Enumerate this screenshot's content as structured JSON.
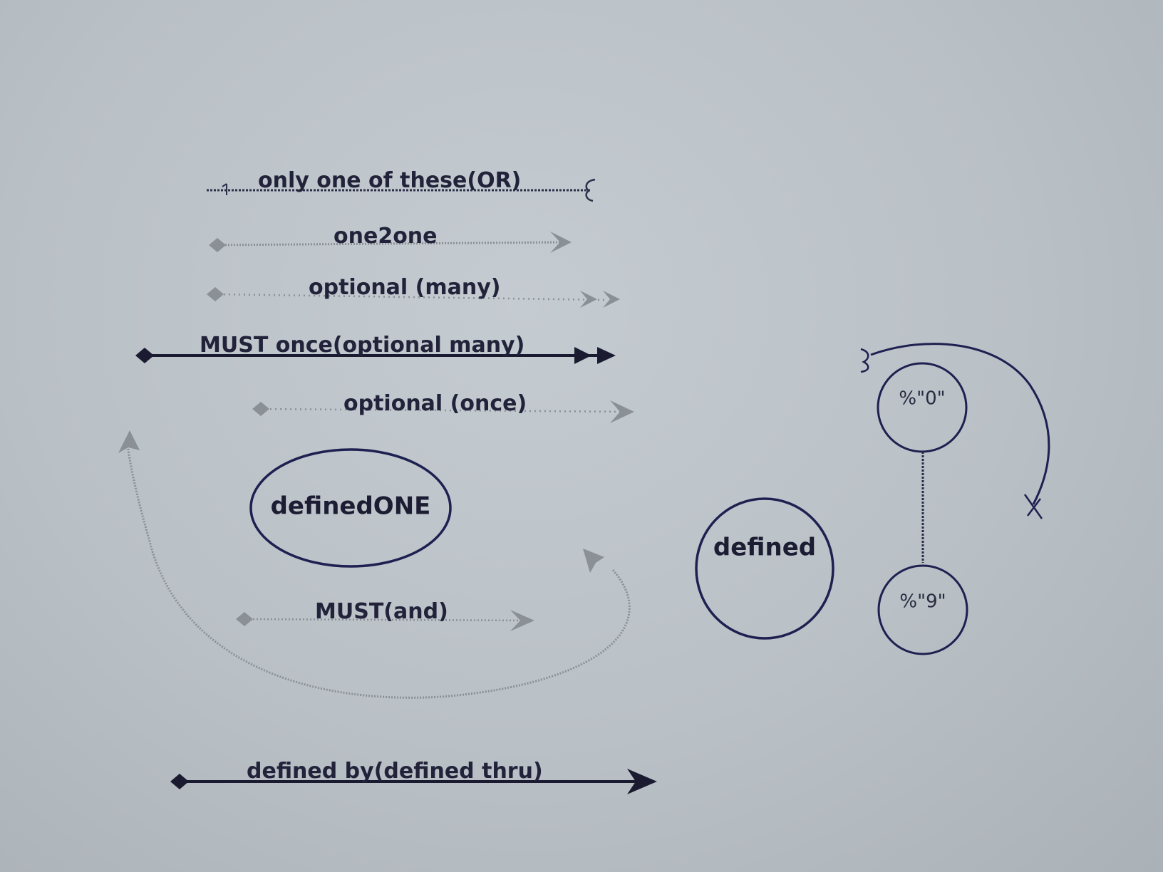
{
  "legend": {
    "or": "only one of these(OR)",
    "one2one": "one2one",
    "optional_many": "optional (many)",
    "must_once_optional_many": "MUST once(optional many)",
    "optional_once": "optional (once)",
    "must_and": "MUST(and)",
    "defined_by": "defined by(defined thru)"
  },
  "nodes": {
    "defined_one": "definedONE",
    "defined": "defined",
    "range_start": "%\"0\"",
    "range_end": "%\"9\""
  },
  "colors": {
    "ink": "#1c1d33",
    "dark_line": "#1a1b30",
    "grey_line": "#8b8f96",
    "node_stroke": "#1e2050",
    "background": "#bfc6cc"
  }
}
